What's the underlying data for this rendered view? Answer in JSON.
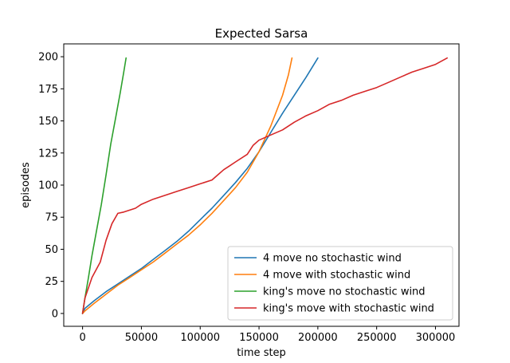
{
  "chart_data": {
    "type": "line",
    "title": "Expected Sarsa",
    "xlabel": "time step",
    "ylabel": "episodes",
    "xlim": [
      -16000,
      320000
    ],
    "ylim": [
      -10,
      210
    ],
    "xticks": [
      0,
      50000,
      100000,
      150000,
      200000,
      250000,
      300000
    ],
    "xtick_labels": [
      "0",
      "50000",
      "100000",
      "150000",
      "200000",
      "250000",
      "300000"
    ],
    "yticks": [
      0,
      25,
      50,
      75,
      100,
      125,
      150,
      175,
      200
    ],
    "ytick_labels": [
      "0",
      "25",
      "50",
      "75",
      "100",
      "125",
      "150",
      "175",
      "200"
    ],
    "grid": false,
    "legend_position": "lower-right",
    "series": [
      {
        "name": "4 move no stochastic wind",
        "color": "#1f77b4",
        "x": [
          0,
          2000,
          10000,
          20000,
          30000,
          40000,
          50000,
          60000,
          70000,
          80000,
          90000,
          100000,
          110000,
          120000,
          130000,
          140000,
          150000,
          160000,
          170000,
          180000,
          190000,
          200000
        ],
        "y": [
          0,
          4,
          10,
          17,
          23,
          29,
          35,
          42,
          49,
          56,
          64,
          73,
          82,
          92,
          102,
          113,
          126,
          141,
          156,
          170,
          184,
          199
        ]
      },
      {
        "name": "4 move with stochastic wind",
        "color": "#ff7f0e",
        "x": [
          0,
          2000,
          10000,
          20000,
          30000,
          40000,
          50000,
          60000,
          70000,
          80000,
          90000,
          100000,
          110000,
          120000,
          130000,
          140000,
          150000,
          160000,
          170000,
          175000,
          178000
        ],
        "y": [
          0,
          2,
          8,
          15,
          22,
          28,
          34,
          40,
          47,
          54,
          61,
          69,
          78,
          88,
          98,
          110,
          126,
          146,
          170,
          186,
          199
        ]
      },
      {
        "name": "king's move no stochastic wind",
        "color": "#2ca02c",
        "x": [
          0,
          2000,
          5000,
          8000,
          12000,
          16000,
          20000,
          24000,
          28000,
          32000,
          35000,
          37000
        ],
        "y": [
          0,
          12,
          28,
          45,
          65,
          85,
          108,
          132,
          152,
          172,
          188,
          199
        ]
      },
      {
        "name": "king's move with stochastic wind",
        "color": "#d62728",
        "x": [
          0,
          2000,
          8000,
          15000,
          20000,
          25000,
          30000,
          35000,
          45000,
          50000,
          60000,
          70000,
          80000,
          90000,
          100000,
          110000,
          115000,
          120000,
          125000,
          130000,
          140000,
          145000,
          150000,
          160000,
          170000,
          180000,
          190000,
          200000,
          210000,
          220000,
          230000,
          240000,
          250000,
          260000,
          270000,
          280000,
          290000,
          300000,
          310000
        ],
        "y": [
          0,
          12,
          28,
          40,
          57,
          70,
          78,
          79,
          82,
          85,
          89,
          92,
          95,
          98,
          101,
          104,
          108,
          112,
          115,
          118,
          124,
          131,
          135,
          139,
          143,
          149,
          154,
          158,
          163,
          166,
          170,
          173,
          176,
          180,
          184,
          188,
          191,
          194,
          199
        ]
      }
    ]
  }
}
